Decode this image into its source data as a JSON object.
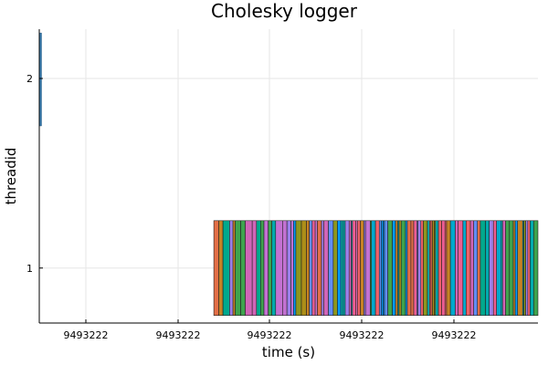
{
  "chart_data": {
    "type": "bar",
    "title": "Cholesky logger",
    "xlabel": "time (s)",
    "ylabel": "threadid",
    "x_tick_labels": [
      "9493222",
      "9493222",
      "9493222",
      "9493222",
      "9493222"
    ],
    "y_tick_labels": [
      "1",
      "2"
    ],
    "xlim": [
      0,
      1
    ],
    "ylim": [
      0.71,
      2.26
    ],
    "grid": true,
    "legend": "none",
    "series": [
      {
        "threadid": 2,
        "x_start": 0.0,
        "x_end": 0.003,
        "color": "#3b7fb3"
      },
      {
        "threadid": 1,
        "x_start": 0.35,
        "x_end": 1.0,
        "color": "multicolor"
      }
    ],
    "palette": [
      "#009AFA",
      "#E36F47",
      "#3EA44E",
      "#C371D2",
      "#AC8E18",
      "#00AAAE",
      "#ED5E93",
      "#C68225",
      "#00A98D",
      "#8E971E",
      "#00A9CD",
      "#9B7FE9",
      "#618DF6",
      "#F16169",
      "#D165B8"
    ]
  }
}
